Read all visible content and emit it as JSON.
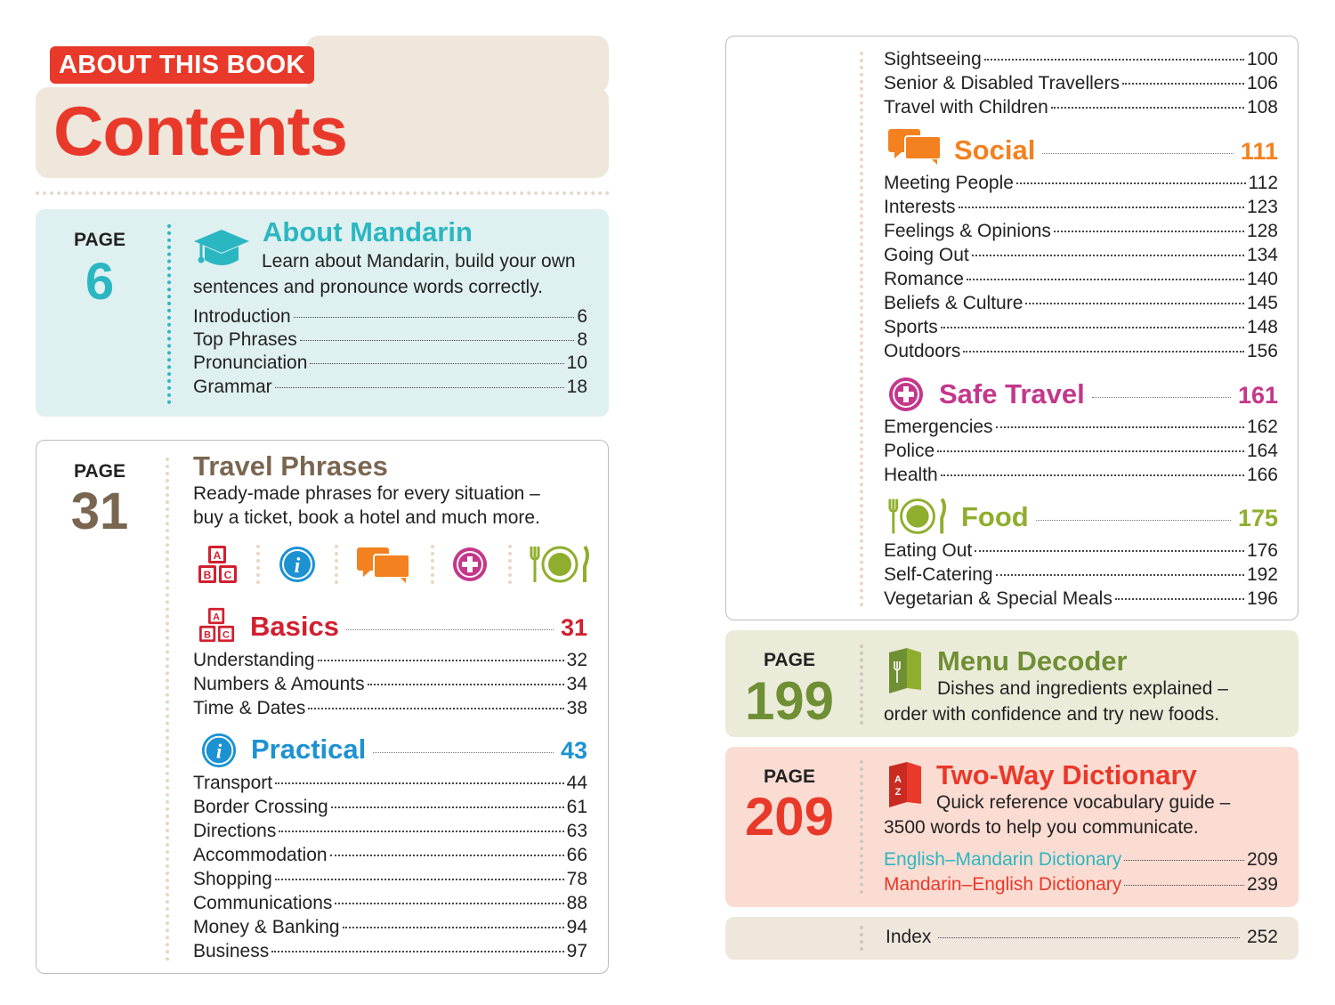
{
  "header": {
    "label": "ABOUT THIS BOOK",
    "title": "Contents"
  },
  "about": {
    "page_label": "PAGE",
    "page": "6",
    "title": "About Mandarin",
    "desc_line1": "Learn about Mandarin, build your own",
    "desc_line2": "sentences and pronounce words correctly.",
    "items": [
      {
        "label": "Introduction",
        "page": "6"
      },
      {
        "label": "Top Phrases",
        "page": "8"
      },
      {
        "label": "Pronunciation",
        "page": "10"
      },
      {
        "label": "Grammar",
        "page": "18"
      }
    ]
  },
  "travel": {
    "page_label": "PAGE",
    "page": "31",
    "title": "Travel Phrases",
    "desc_line1": "Ready-made phrases for every situation –",
    "desc_line2": "buy a ticket, book a hotel and much more.",
    "icons": [
      "abc-blocks-icon",
      "info-icon",
      "speech-bubbles-icon",
      "plus-circle-icon",
      "plate-fork-knife-icon"
    ]
  },
  "basics": {
    "title": "Basics",
    "page": "31",
    "items": [
      {
        "label": "Understanding",
        "page": "32"
      },
      {
        "label": "Numbers & Amounts",
        "page": "34"
      },
      {
        "label": "Time & Dates",
        "page": "38"
      }
    ]
  },
  "practical": {
    "title": "Practical",
    "page": "43",
    "items": [
      {
        "label": "Transport",
        "page": "44"
      },
      {
        "label": "Border Crossing",
        "page": "61"
      },
      {
        "label": "Directions",
        "page": "63"
      },
      {
        "label": "Accommodation",
        "page": "66"
      },
      {
        "label": "Shopping",
        "page": "78"
      },
      {
        "label": "Communications",
        "page": "88"
      },
      {
        "label": "Money & Banking",
        "page": "94"
      },
      {
        "label": "Business",
        "page": "97"
      }
    ]
  },
  "practical_cont": {
    "items": [
      {
        "label": "Sightseeing",
        "page": "100"
      },
      {
        "label": "Senior & Disabled Travellers",
        "page": "106"
      },
      {
        "label": "Travel with Children",
        "page": "108"
      }
    ]
  },
  "social": {
    "title": "Social",
    "page": "111",
    "items": [
      {
        "label": "Meeting People",
        "page": "112"
      },
      {
        "label": "Interests",
        "page": "123"
      },
      {
        "label": "Feelings & Opinions",
        "page": "128"
      },
      {
        "label": "Going Out",
        "page": "134"
      },
      {
        "label": "Romance",
        "page": "140"
      },
      {
        "label": "Beliefs & Culture",
        "page": "145"
      },
      {
        "label": "Sports",
        "page": "148"
      },
      {
        "label": "Outdoors",
        "page": "156"
      }
    ]
  },
  "safe": {
    "title": "Safe Travel",
    "page": "161",
    "items": [
      {
        "label": "Emergencies",
        "page": "162"
      },
      {
        "label": "Police",
        "page": "164"
      },
      {
        "label": "Health",
        "page": "166"
      }
    ]
  },
  "food": {
    "title": "Food",
    "page": "175",
    "items": [
      {
        "label": "Eating Out",
        "page": "176"
      },
      {
        "label": "Self-Catering",
        "page": "192"
      },
      {
        "label": "Vegetarian & Special Meals",
        "page": "196"
      }
    ]
  },
  "menu": {
    "page_label": "PAGE",
    "page": "199",
    "title": "Menu Decoder",
    "desc_line1": "Dishes and ingredients explained –",
    "desc_line2": "order with confidence and try new foods."
  },
  "dictionary": {
    "page_label": "PAGE",
    "page": "209",
    "title": "Two-Way Dictionary",
    "desc_line1": "Quick reference vocabulary guide –",
    "desc_line2": "3500 words to help you communicate.",
    "items": [
      {
        "label": "English–Mandarin Dictionary",
        "page": "209"
      },
      {
        "label": "Mandarin–English Dictionary",
        "page": "239"
      }
    ]
  },
  "index": {
    "label": "Index",
    "page": "252"
  },
  "colors": {
    "red": "#e8392a",
    "teal": "#2bb7c1",
    "brown": "#7a6650",
    "basics_red": "#d1202f",
    "practical_blue": "#1c92d2",
    "social_orange": "#f3811f",
    "safe_magenta": "#c4378b",
    "food_green": "#8fae2d",
    "menu_green": "#6f8f34"
  }
}
